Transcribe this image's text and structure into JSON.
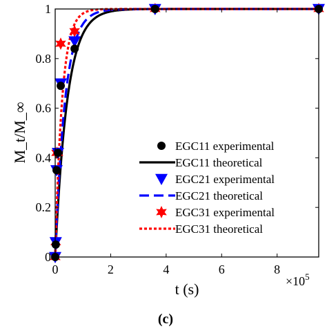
{
  "chart_data": {
    "type": "line",
    "panel_label": "(c)",
    "xlabel": "t (s)",
    "ylabel": "M_t/M_∞",
    "x_multiplier": "×10",
    "x_multiplier_exp": "5",
    "xlim": [
      0,
      95
    ],
    "ylim": [
      0,
      1
    ],
    "x_units_note": "x values in units of 10^5 s",
    "xticks": [
      0,
      2,
      4,
      6,
      8
    ],
    "yticks": [
      0,
      0.2,
      0.4,
      0.6,
      0.8,
      1
    ],
    "ytick_labels": [
      "0",
      "0.2",
      "0.4",
      "0.6",
      "0.8",
      "1"
    ],
    "legend_position": "center-right",
    "series": [
      {
        "name": "EGC11 experimental",
        "style": "marker-circle",
        "color": "#000000",
        "x": [
          0,
          0.02,
          0.05,
          0.1,
          0.2,
          0.7,
          3.6,
          9.5
        ],
        "y": [
          0,
          0.05,
          0.35,
          0.42,
          0.69,
          0.84,
          1.0,
          1.0
        ]
      },
      {
        "name": "EGC11 theoretical",
        "style": "line-solid",
        "color": "#000000",
        "k": 2.3
      },
      {
        "name": "EGC21 experimental",
        "style": "marker-triangle-down",
        "color": "#0000ff",
        "x": [
          0,
          0.02,
          0.05,
          0.1,
          0.2,
          0.7,
          3.6,
          9.5
        ],
        "y": [
          0,
          0.06,
          0.35,
          0.42,
          0.7,
          0.87,
          1.0,
          1.0
        ]
      },
      {
        "name": "EGC21 theoretical",
        "style": "line-dashed",
        "color": "#0000ff",
        "k": 2.8
      },
      {
        "name": "EGC31 experimental",
        "style": "marker-hexagram",
        "color": "#ff0000",
        "x": [
          0,
          0.02,
          0.05,
          0.1,
          0.2,
          0.7,
          3.6,
          9.5
        ],
        "y": [
          0,
          0.06,
          0.42,
          0.42,
          0.86,
          0.91,
          1.0,
          1.0
        ]
      },
      {
        "name": "EGC31 theoretical",
        "style": "line-dotted",
        "color": "#ff0000",
        "k": 4.0
      }
    ]
  }
}
